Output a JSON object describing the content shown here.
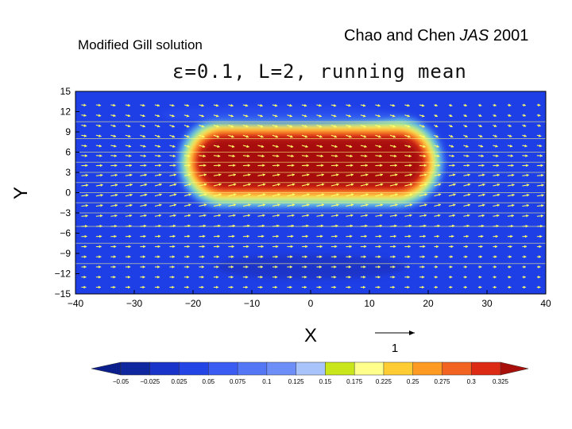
{
  "subtitle": "Modified Gill solution",
  "citation": {
    "authors": "Chao and Chen",
    "journal": "JAS",
    "year": "2001"
  },
  "colors": {
    "background": "#1f3fe6",
    "vector": "#ffff66",
    "contour": "#ffff88"
  },
  "chart_data": {
    "type": "heatmap",
    "title": "ε=0.1, L=2, running mean",
    "xlabel": "X",
    "ylabel": "Y",
    "xlim": [
      -40,
      40
    ],
    "ylim": [
      -15,
      15
    ],
    "x_ticks": [
      "−40",
      "−30",
      "−20",
      "−10",
      "0",
      "10",
      "20",
      "30",
      "40"
    ],
    "x_tick_values": [
      -40,
      -30,
      -20,
      -10,
      0,
      10,
      20,
      30,
      40
    ],
    "y_ticks": [
      "15",
      "12",
      "9",
      "6",
      "3",
      "0",
      "−3",
      "−6",
      "−9",
      "−12",
      "−15"
    ],
    "y_tick_values": [
      15,
      12,
      9,
      6,
      3,
      0,
      -3,
      -6,
      -9,
      -12,
      -15
    ],
    "heating_region": {
      "x": [
        -20,
        20
      ],
      "y_center": 4.5,
      "half_width": 4.5
    },
    "reference_vector": {
      "label": "1",
      "magnitude": 1
    },
    "colorbar": {
      "levels": [
        "−0.05",
        "−0.025",
        "0.025",
        "0.05",
        "0.075",
        "0.1",
        "0.125",
        "0.15",
        "0.175",
        "0.225",
        "0.25",
        "0.275",
        "0.3",
        "0.325"
      ],
      "colors": [
        "#0a1e8c",
        "#10289f",
        "#1a33c8",
        "#2345e6",
        "#3b5cf2",
        "#5478f5",
        "#6d8df7",
        "#a9c4fb",
        "#c8e61a",
        "#ffff8c",
        "#ffcc33",
        "#ff9a22",
        "#f26322",
        "#dc2a14",
        "#a80f0a"
      ]
    }
  }
}
